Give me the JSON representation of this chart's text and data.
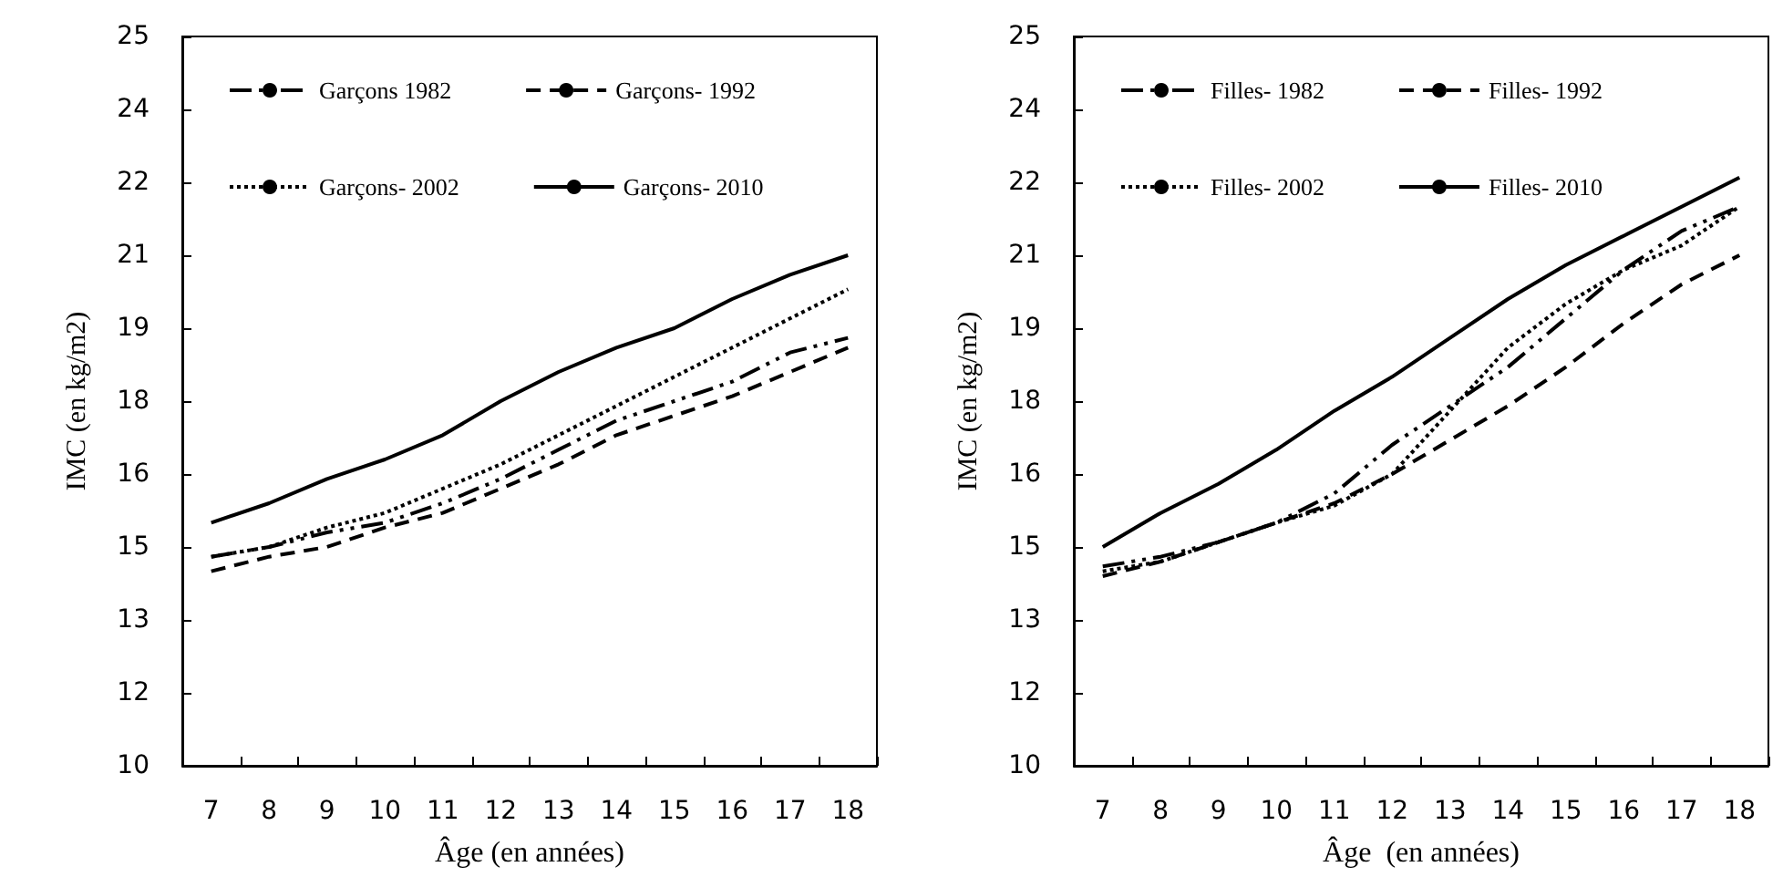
{
  "chart_data": [
    {
      "type": "line",
      "xlabel": "Âge (en années)",
      "ylabel": "IMC (en kg/m2)",
      "categories": [
        "7",
        "8",
        "9",
        "10",
        "11",
        "12",
        "13",
        "14",
        "15",
        "16",
        "17",
        "18"
      ],
      "ylim": [
        10,
        25
      ],
      "yticks": [
        10,
        {
          "value": 11.5,
          "label": "12"
        },
        13,
        {
          "value": 14.5,
          "label": "15"
        },
        16,
        {
          "value": 17.5,
          "label": "18"
        },
        19,
        {
          "value": 20.5,
          "label": "21"
        },
        22,
        {
          "value": 23.5,
          "label": "24"
        },
        25
      ],
      "grid": false,
      "legend": "top",
      "marker": "none",
      "series": [
        {
          "name": "Garçons 1982",
          "color": "#000000",
          "line_style": "dashdot",
          "values": [
            14.3,
            14.5,
            14.8,
            15.0,
            15.4,
            15.9,
            16.5,
            17.1,
            17.5,
            17.9,
            18.5,
            18.8
          ]
        },
        {
          "name": "Garçons- 1992",
          "color": "#000000",
          "line_style": "dashed",
          "values": [
            14.0,
            14.3,
            14.5,
            14.9,
            15.2,
            15.7,
            16.2,
            16.8,
            17.2,
            17.6,
            18.1,
            18.6
          ]
        },
        {
          "name": "Garçons- 2002",
          "color": "#000000",
          "line_style": "dotted",
          "values": [
            14.3,
            14.5,
            14.9,
            15.2,
            15.7,
            16.2,
            16.8,
            17.4,
            18.0,
            18.6,
            19.2,
            19.8
          ]
        },
        {
          "name": "Garçons- 2010",
          "color": "#000000",
          "line_style": "solid",
          "values": [
            15.0,
            15.4,
            15.9,
            16.3,
            16.8,
            17.5,
            18.1,
            18.6,
            19.0,
            19.6,
            20.1,
            20.5
          ]
        }
      ]
    },
    {
      "type": "line",
      "xlabel": "Âge  (en années)",
      "ylabel": "IMC (en kg/m2)",
      "categories": [
        "7",
        "8",
        "9",
        "10",
        "11",
        "12",
        "13",
        "14",
        "15",
        "16",
        "17",
        "18"
      ],
      "ylim": [
        10,
        25
      ],
      "yticks": [
        10,
        {
          "value": 11.5,
          "label": "12"
        },
        13,
        {
          "value": 14.5,
          "label": "15"
        },
        16,
        {
          "value": 17.5,
          "label": "18"
        },
        19,
        {
          "value": 20.5,
          "label": "21"
        },
        22,
        {
          "value": 23.5,
          "label": "24"
        },
        25
      ],
      "grid": false,
      "legend": "top",
      "marker": "none",
      "series": [
        {
          "name": "Filles- 1982",
          "color": "#000000",
          "line_style": "dashdot",
          "values": [
            14.1,
            14.3,
            14.6,
            15.0,
            15.6,
            16.6,
            17.4,
            18.2,
            19.2,
            20.2,
            21.0,
            21.5
          ]
        },
        {
          "name": "Filles- 1992",
          "color": "#000000",
          "line_style": "dashed",
          "values": [
            13.9,
            14.2,
            14.6,
            15.0,
            15.4,
            16.0,
            16.7,
            17.4,
            18.2,
            19.1,
            19.9,
            20.5
          ]
        },
        {
          "name": "Filles- 2002",
          "color": "#000000",
          "line_style": "dotted",
          "values": [
            14.0,
            14.2,
            14.6,
            15.0,
            15.35,
            16.0,
            17.3,
            18.6,
            19.5,
            20.2,
            20.7,
            21.5
          ]
        },
        {
          "name": "Filles- 2010",
          "color": "#000000",
          "line_style": "solid",
          "values": [
            14.5,
            15.2,
            15.8,
            16.5,
            17.3,
            18.0,
            18.8,
            19.6,
            20.3,
            20.9,
            21.5,
            22.1
          ]
        }
      ]
    }
  ]
}
